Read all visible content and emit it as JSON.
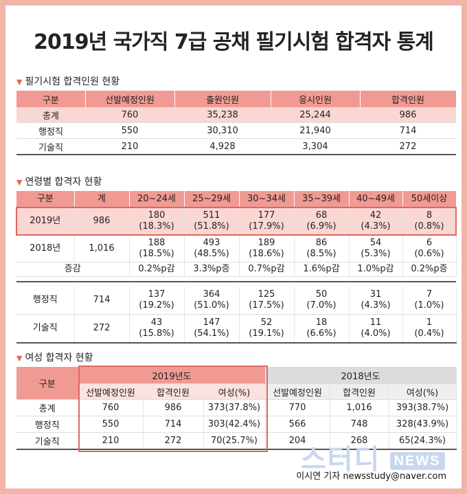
{
  "title": "2019년 국가직 7급 공채 필기시험 합격자 통계",
  "section1": {
    "heading": "필기시험 합격인원 현황",
    "headers": [
      "구분",
      "선발예정인원",
      "출원인원",
      "응시인원",
      "합격인원"
    ],
    "rows": [
      [
        "총계",
        "760",
        "35,238",
        "25,244",
        "986"
      ],
      [
        "행정직",
        "550",
        "30,310",
        "21,940",
        "714"
      ],
      [
        "기술직",
        "210",
        "4,928",
        "3,304",
        "272"
      ]
    ]
  },
  "section2": {
    "heading": "연령별 합격자 현황",
    "headers": [
      "구분",
      "계",
      "20~24세",
      "25~29세",
      "30~34세",
      "35~39세",
      "40~49세",
      "50세이상"
    ],
    "row2019": {
      "label": "2019년",
      "total": "986",
      "cells": [
        [
          "180",
          "(18.3%)"
        ],
        [
          "511",
          "(51.8%)"
        ],
        [
          "177",
          "(17.9%)"
        ],
        [
          "68",
          "(6.9%)"
        ],
        [
          "42",
          "(4.3%)"
        ],
        [
          "8",
          "(0.8%)"
        ]
      ]
    },
    "row2018": {
      "label": "2018년",
      "total": "1,016",
      "cells": [
        [
          "188",
          "(18.5%)"
        ],
        [
          "493",
          "(48.5%)"
        ],
        [
          "189",
          "(18.6%)"
        ],
        [
          "86",
          "(8.5%)"
        ],
        [
          "54",
          "(5.3%)"
        ],
        [
          "6",
          "(0.6%)"
        ]
      ]
    },
    "rowDelta": {
      "label": "증감",
      "cells": [
        "0.2%p감",
        "3.3%p증",
        "0.7%p감",
        "1.6%p감",
        "1.0%p감",
        "0.2%p증"
      ]
    },
    "rowAdmin": {
      "label": "행정직",
      "total": "714",
      "cells": [
        [
          "137",
          "(19.2%)"
        ],
        [
          "364",
          "(51.0%)"
        ],
        [
          "125",
          "(17.5%)"
        ],
        [
          "50",
          "(7.0%)"
        ],
        [
          "31",
          "(4.3%)"
        ],
        [
          "7",
          "(1.0%)"
        ]
      ]
    },
    "rowTech": {
      "label": "기술직",
      "total": "272",
      "cells": [
        [
          "43",
          "(15.8%)"
        ],
        [
          "147",
          "(54.1%)"
        ],
        [
          "52",
          "(19.1%)"
        ],
        [
          "18",
          "(6.6%)"
        ],
        [
          "11",
          "(4.0%)"
        ],
        [
          "1",
          "(0.4%)"
        ]
      ]
    }
  },
  "section3": {
    "heading": "여성 합격자 현황",
    "corner": "구분",
    "year2019": "2019년도",
    "year2018": "2018년도",
    "sub": [
      "선발예정인원",
      "합격인원",
      "여성(%)",
      "선발예정인원",
      "합격인원",
      "여성(%)"
    ],
    "rows": [
      [
        "총계",
        "760",
        "986",
        "373(37.8%)",
        "770",
        "1,016",
        "393(38.7%)"
      ],
      [
        "행정직",
        "550",
        "714",
        "303(42.4%)",
        "566",
        "748",
        "328(43.9%)"
      ],
      [
        "기술직",
        "210",
        "272",
        "70(25.7%)",
        "204",
        "268",
        "65(24.3%)"
      ]
    ]
  },
  "watermark": {
    "text": "스터디",
    "badge": "NEWS"
  },
  "credit": "이시연 기자 newsstudy@naver.com"
}
